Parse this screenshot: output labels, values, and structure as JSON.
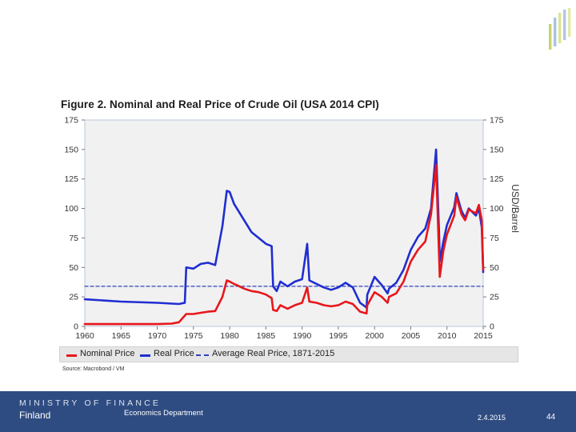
{
  "logo": {
    "colors": [
      "#c7d36b",
      "#a9c3e0",
      "#dbe58f",
      "#b3c7e6",
      "#e3e9a6"
    ]
  },
  "chart_data": {
    "type": "line",
    "title": "Figure 2. Nominal and Real Price of Crude Oil (USA 2014 CPI)",
    "xlabel": "",
    "ylabel": "USD/Barrel",
    "xlim": [
      1960,
      2015
    ],
    "ylim": [
      0,
      175
    ],
    "x_ticks": [
      1960,
      1965,
      1970,
      1975,
      1980,
      1985,
      1990,
      1995,
      2000,
      2005,
      2010,
      2015
    ],
    "y_ticks": [
      0,
      25,
      50,
      75,
      100,
      125,
      150,
      175
    ],
    "grid": false,
    "legend_position": "bottom",
    "series": [
      {
        "name": "Nominal Price",
        "color": "#e8161b",
        "style": "solid",
        "x": [
          1960,
          1965,
          1970,
          1972,
          1973,
          1974,
          1975,
          1976,
          1977,
          1978,
          1979,
          1979.6,
          1980,
          1980.6,
          1981,
          1982,
          1983,
          1984,
          1985,
          1985.8,
          1986,
          1986.5,
          1987,
          1988,
          1989,
          1990,
          1990.7,
          1991,
          1992,
          1993,
          1994,
          1995,
          1996,
          1997,
          1998,
          1998.9,
          1999,
          2000,
          2001,
          2001.8,
          2002,
          2003,
          2004,
          2005,
          2006,
          2007,
          2007.8,
          2008.5,
          2008.9,
          2009,
          2009.5,
          2010,
          2011,
          2011.3,
          2012,
          2012.5,
          2013,
          2014,
          2014.4,
          2014.8,
          2015
        ],
        "y": [
          2,
          2,
          2,
          2.4,
          3.5,
          10.5,
          10.5,
          11.5,
          12.5,
          13,
          25,
          39,
          38,
          36,
          35,
          32,
          30,
          29,
          27,
          24,
          14,
          13,
          18,
          15,
          18,
          20,
          33,
          21,
          20,
          18,
          17,
          18,
          21,
          19,
          12.5,
          11,
          18,
          29,
          25,
          20,
          25,
          28,
          38,
          55,
          65,
          72,
          95,
          137,
          60,
          42,
          64,
          78,
          94,
          110,
          95,
          90,
          99,
          96,
          103,
          90,
          48
        ]
      },
      {
        "name": "Real Price",
        "color": "#1f2ed0",
        "style": "solid",
        "x": [
          1960,
          1965,
          1970,
          1973,
          1973.8,
          1974,
          1975,
          1976,
          1977,
          1978,
          1979,
          1979.6,
          1980,
          1980.6,
          1981,
          1982,
          1983,
          1984,
          1985,
          1985.8,
          1986,
          1986.5,
          1987,
          1988,
          1989,
          1990,
          1990.7,
          1991,
          1992,
          1993,
          1994,
          1995,
          1996,
          1997,
          1998,
          1998.9,
          1999,
          2000,
          2001,
          2001.8,
          2002,
          2003,
          2004,
          2005,
          2006,
          2007,
          2007.8,
          2008.5,
          2008.9,
          2009,
          2009.5,
          2010,
          2011,
          2011.3,
          2012,
          2012.5,
          2013,
          2014,
          2014.4,
          2014.8,
          2015
        ],
        "y": [
          23,
          21,
          20,
          19,
          20,
          50,
          49,
          53,
          54,
          52,
          85,
          115,
          114,
          104,
          100,
          90,
          80,
          75,
          70,
          68,
          34,
          30,
          38,
          34,
          38,
          40,
          70,
          39,
          36,
          33,
          31,
          33,
          37,
          33,
          20,
          16,
          27,
          42,
          35,
          28,
          32,
          37,
          48,
          65,
          76,
          83,
          100,
          150,
          80,
          55,
          72,
          86,
          101,
          113,
          98,
          92,
          100,
          94,
          100,
          84,
          46
        ]
      },
      {
        "name": "Average Real Price, 1871-2015",
        "color": "#3142b9",
        "style": "dashed",
        "x": [
          1960,
          2015
        ],
        "y": [
          34,
          34
        ]
      }
    ],
    "source": "Source: Macrobond / VM"
  },
  "footer": {
    "ministry": "MINISTRY OF FINANCE",
    "country": "Finland",
    "department": "Economics Department",
    "date": "2.4.2015",
    "page": "44"
  }
}
